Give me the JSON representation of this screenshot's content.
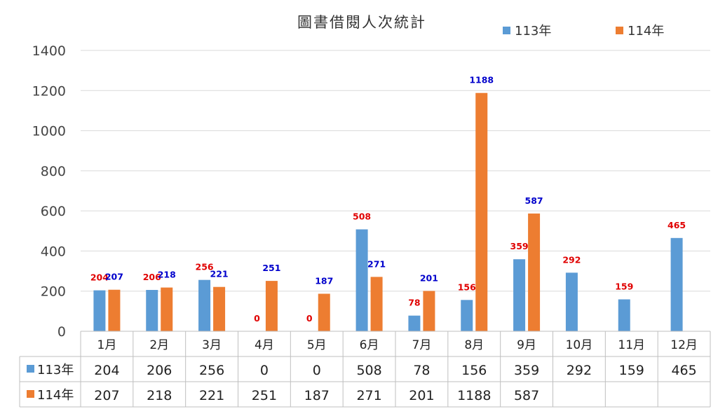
{
  "chart_data": {
    "type": "bar",
    "title": "圖書借閱人次統計",
    "categories": [
      "1月",
      "2月",
      "3月",
      "4月",
      "5月",
      "6月",
      "7月",
      "8月",
      "9月",
      "10月",
      "11月",
      "12月"
    ],
    "series": [
      {
        "name": "113年",
        "color": "#5b9bd5",
        "values": [
          204,
          206,
          256,
          0,
          0,
          508,
          78,
          156,
          359,
          292,
          159,
          465
        ]
      },
      {
        "name": "114年",
        "color": "#ed7d31",
        "values": [
          207,
          218,
          221,
          251,
          187,
          271,
          201,
          1188,
          587,
          null,
          null,
          null
        ]
      }
    ],
    "ylim": [
      0,
      1400
    ],
    "yticks": [
      0,
      200,
      400,
      600,
      800,
      1000,
      1200,
      1400
    ],
    "legend": "top-right",
    "grid": true,
    "label_colors": {
      "red": "#e00000",
      "blue": "#0000cc"
    },
    "data_table": true
  }
}
